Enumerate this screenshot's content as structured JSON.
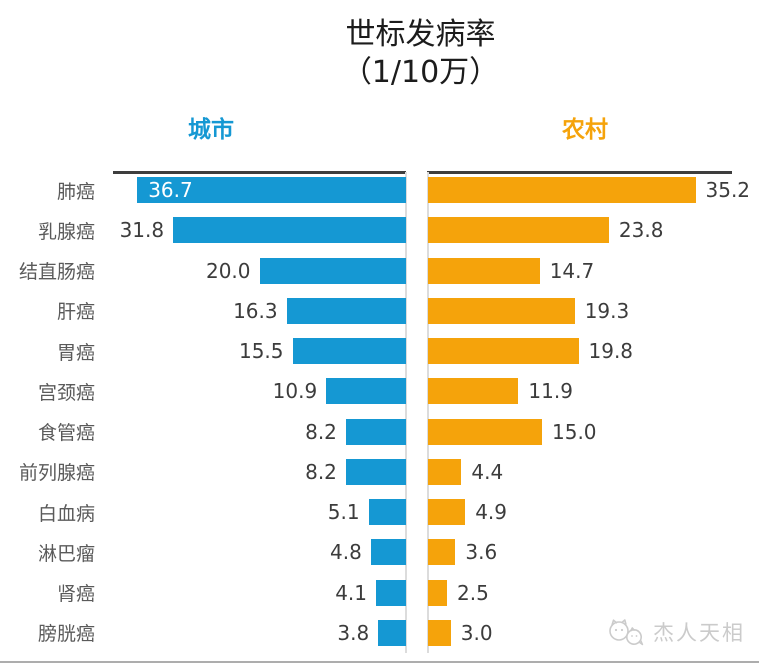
{
  "title": {
    "line1": "世标发病率",
    "line2": "（1/10万）"
  },
  "headers": {
    "urban": "城市",
    "rural": "农村"
  },
  "watermark": {
    "brand": "杰人天相"
  },
  "colors": {
    "urban": "#1598D3",
    "rural": "#F5A30B",
    "axis_line": "#3E3E3E",
    "divider": "#DCDCDC",
    "category_text": "#5A5A5A",
    "value_text": "#3C3C3C",
    "inside_value_text": "#FFFFFF",
    "watermark_text": "#CBCBCB",
    "bottom_line": "#ADADAD"
  },
  "chart_data": {
    "type": "bar",
    "subtype": "bidirectional-horizontal (tornado)",
    "title": "世标发病率（1/10万）",
    "xlabel": "",
    "ylabel": "",
    "categories": [
      "肺癌",
      "乳腺癌",
      "结直肠癌",
      "肝癌",
      "胃癌",
      "宫颈癌",
      "食管癌",
      "前列腺癌",
      "白血病",
      "淋巴瘤",
      "肾癌",
      "膀胱癌"
    ],
    "series": [
      {
        "name": "城市",
        "side": "left",
        "color": "#1598D3",
        "values": [
          36.7,
          31.8,
          20.0,
          16.3,
          15.5,
          10.9,
          8.2,
          8.2,
          5.1,
          4.8,
          4.1,
          3.8
        ]
      },
      {
        "name": "农村",
        "side": "right",
        "color": "#F5A30B",
        "values": [
          35.2,
          23.8,
          14.7,
          19.3,
          19.8,
          11.9,
          15.0,
          4.4,
          4.9,
          3.6,
          2.5,
          3.0
        ]
      }
    ],
    "value_label_format": "one-decimal",
    "axis": {
      "xlim": [
        0,
        40
      ],
      "bars_grow_outward_from_center": false,
      "left_bars_right_aligned": true
    },
    "grid": false,
    "legend_position": "top"
  }
}
